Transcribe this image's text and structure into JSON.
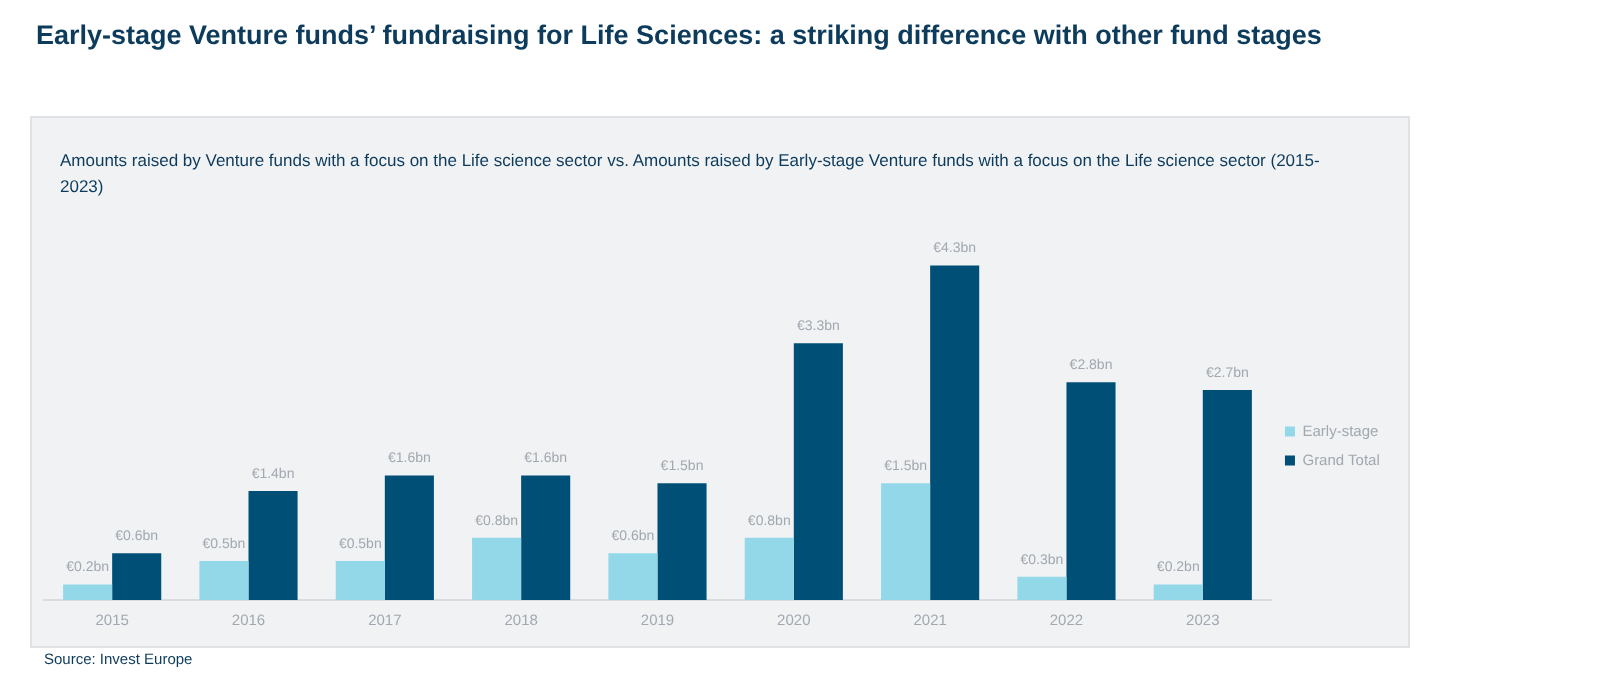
{
  "chart_data": {
    "type": "bar",
    "title": "Early-stage Venture funds’ fundraising for Life Sciences: a striking difference with other fund stages",
    "subtitle": "Amounts raised by Venture funds with a focus on the Life science sector vs. Amounts raised by Early-stage Venture funds with a focus on the Life science sector (2015-2023)",
    "categories": [
      "2015",
      "2016",
      "2017",
      "2018",
      "2019",
      "2020",
      "2021",
      "2022",
      "2023"
    ],
    "series": [
      {
        "name": "Early-stage",
        "color": "#92d8e8",
        "values": [
          0.2,
          0.5,
          0.5,
          0.8,
          0.6,
          0.8,
          1.5,
          0.3,
          0.2
        ],
        "value_labels": [
          "€0.2bn",
          "€0.5bn",
          "€0.5bn",
          "€0.8bn",
          "€0.6bn",
          "€0.8bn",
          "€1.5bn",
          "€0.3bn",
          "€0.2bn"
        ]
      },
      {
        "name": "Grand Total",
        "color": "#004f76",
        "values": [
          0.6,
          1.4,
          1.6,
          1.6,
          1.5,
          3.3,
          4.3,
          2.8,
          2.7
        ],
        "value_labels": [
          "€0.6bn",
          "€1.4bn",
          "€1.6bn",
          "€1.6bn",
          "€1.5bn",
          "€3.3bn",
          "€4.3bn",
          "€2.8bn",
          "€2.7bn"
        ]
      }
    ],
    "grid": false,
    "legend": "right",
    "annotations": [
      "Source: Invest Europe"
    ]
  }
}
